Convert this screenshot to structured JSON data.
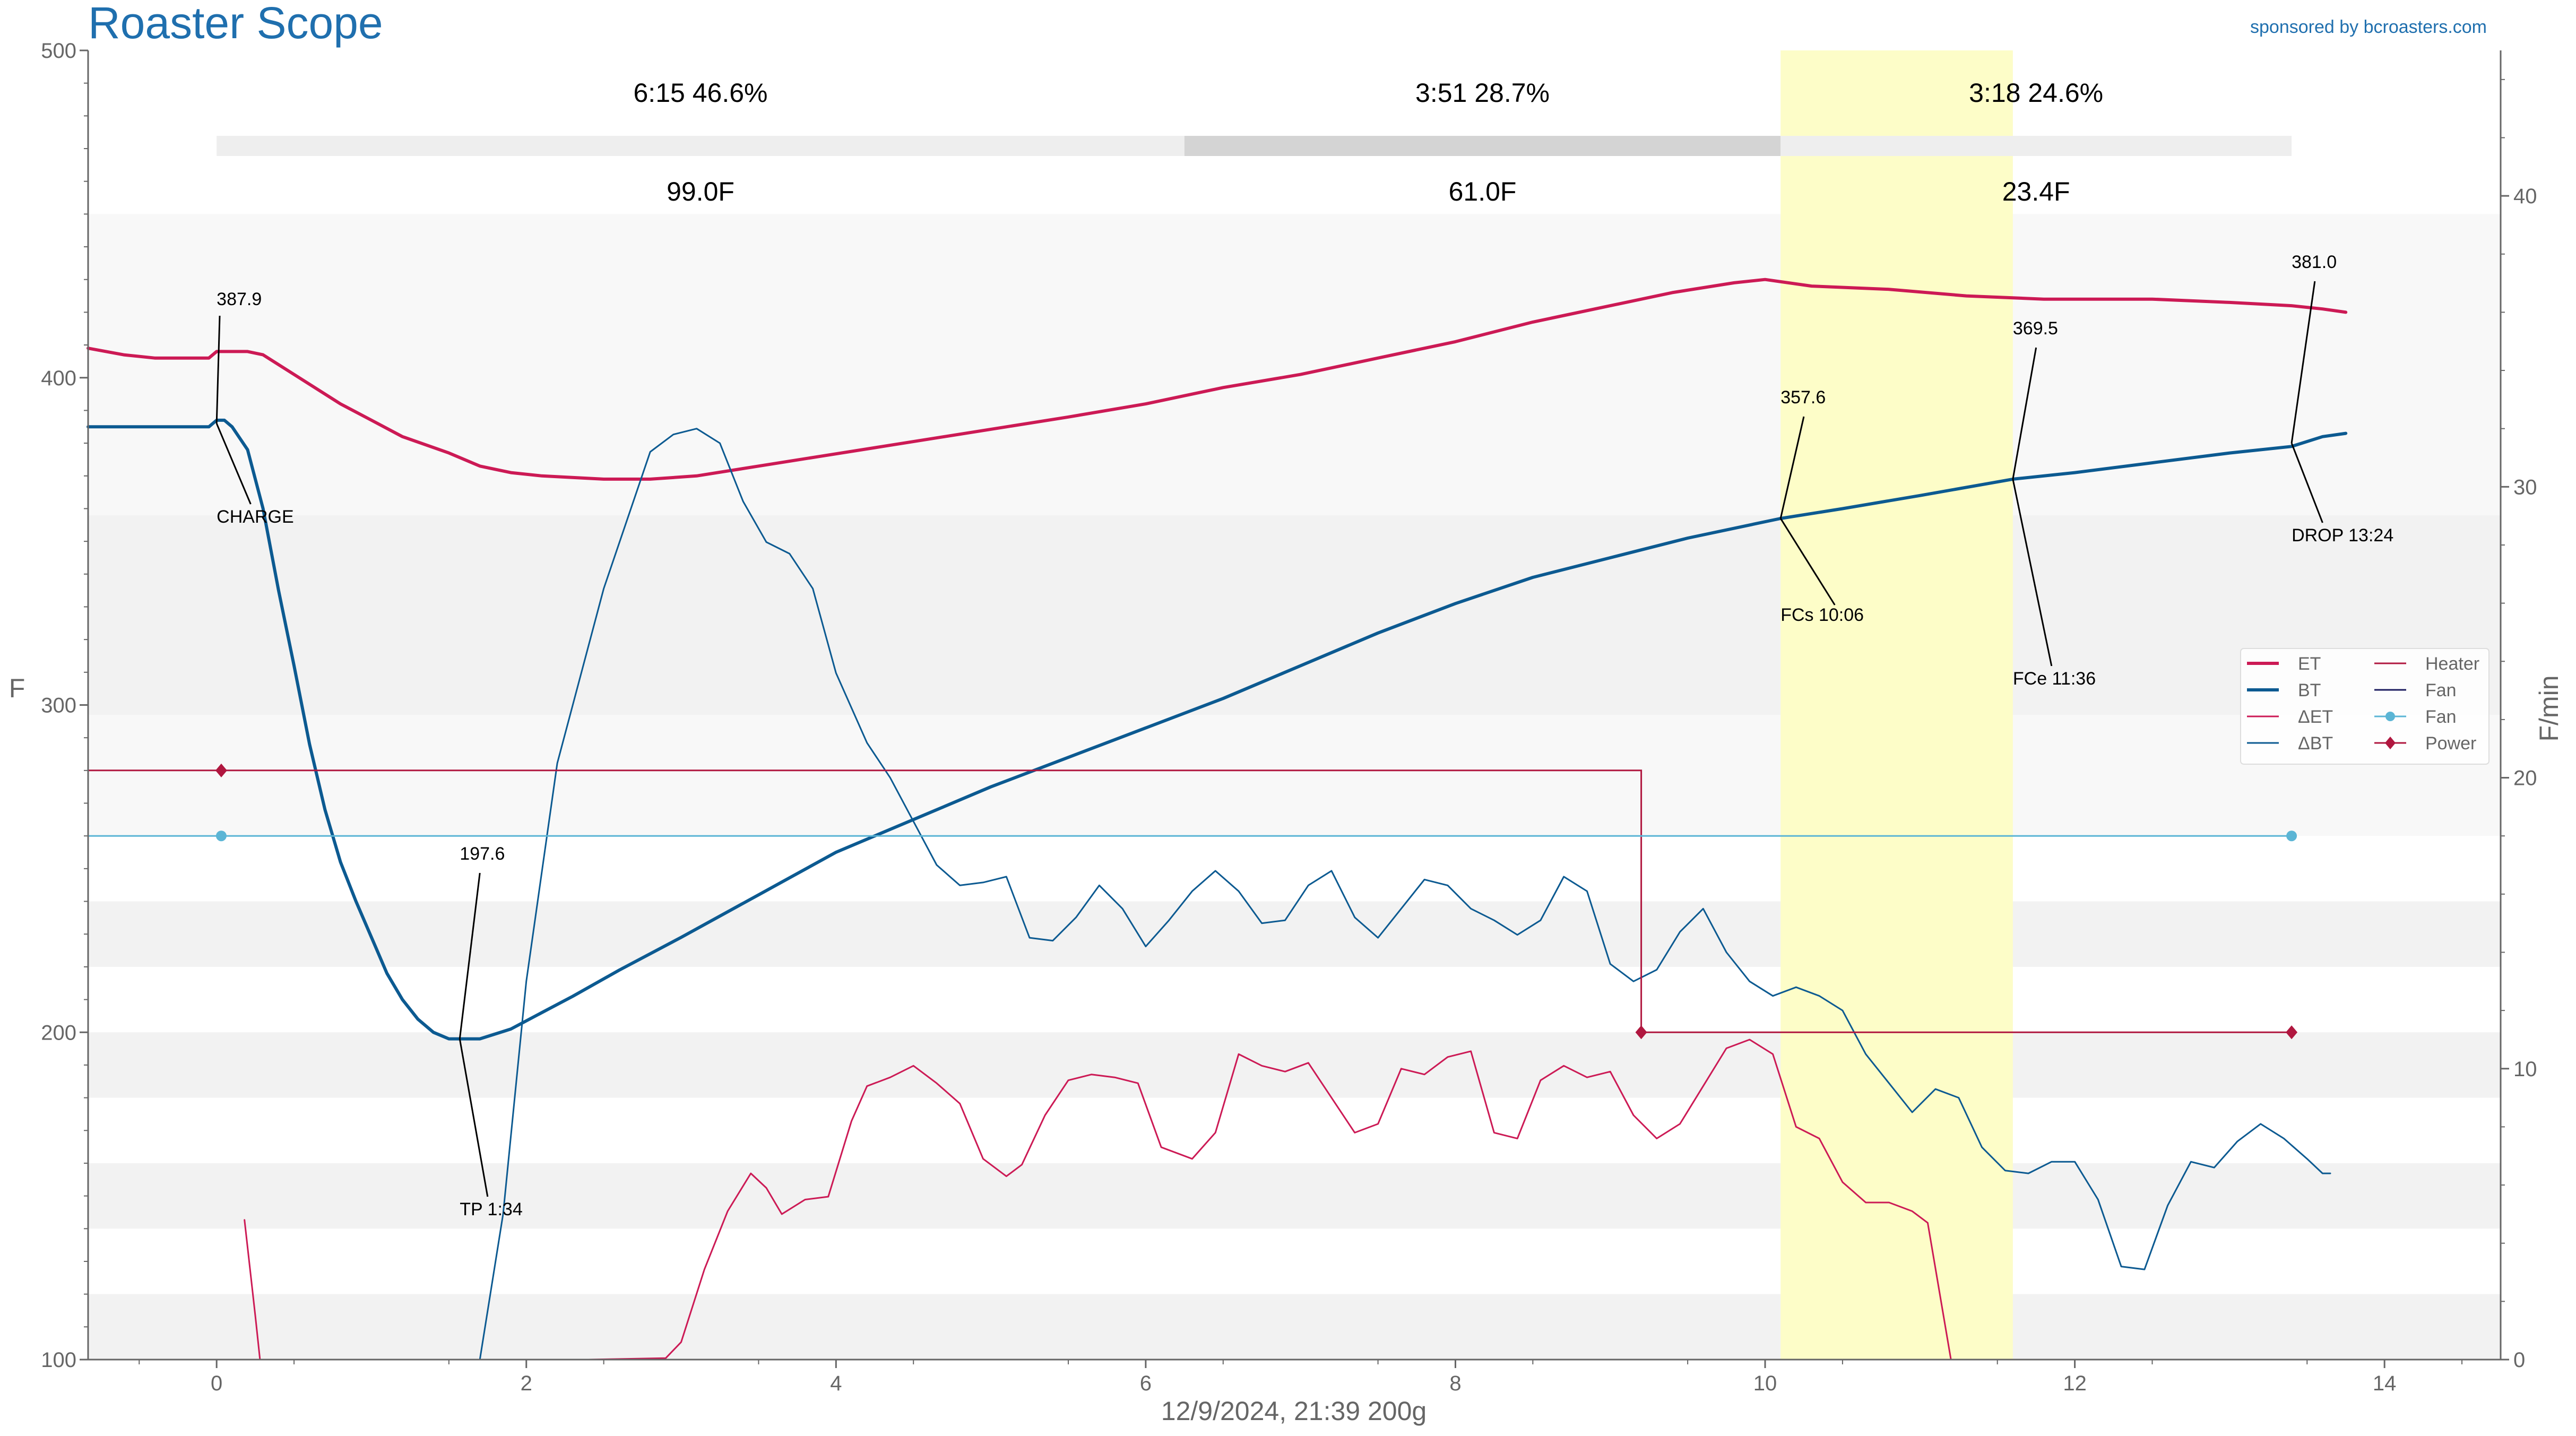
{
  "header": {
    "app_title": "Roaster Scope",
    "sponsor": "sponsored by bcroasters.com",
    "footer": "12/9/2024, 21:39   200g"
  },
  "colors": {
    "title": "#1f6fae",
    "sponsor": "#1f6fae",
    "et": "#cc1a55",
    "bt": "#0c5a91",
    "delta_et": "#cc1a55",
    "delta_bt": "#0c5a91",
    "heater": "#b0173f",
    "fan_setting": "#5bb5d5",
    "power": "#b0173f",
    "fc_band": "#fdfdc8",
    "band_light": "#f8f8f8",
    "band_mid": "#f2f2f2",
    "phase_bar_light": "#eeeeee",
    "phase_bar_dark": "#d4d4d4",
    "axis": "#666666"
  },
  "chart_data": {
    "type": "line",
    "xlim": [
      -0.83,
      14.75
    ],
    "ylim_left": [
      100,
      500
    ],
    "ylim_right": [
      0,
      45
    ],
    "ylabel_left": "F",
    "ylabel_right": "F/min",
    "x_ticks": [
      0,
      2,
      4,
      6,
      8,
      10,
      12,
      14
    ],
    "y_ticks_left": [
      100,
      200,
      300,
      400,
      500
    ],
    "y_ticks_right": [
      0,
      10,
      20,
      30,
      40
    ],
    "grid": false,
    "legend_position": "right",
    "legend": [
      {
        "label": "ET",
        "key": "et",
        "style": "line"
      },
      {
        "label": "Heater",
        "key": "heater",
        "style": "line"
      },
      {
        "label": "BT",
        "key": "bt",
        "style": "line"
      },
      {
        "label": "Fan",
        "key": "fan",
        "style": "line",
        "color": "#1a1a5e"
      },
      {
        "label": "ΔET",
        "key": "delta_et",
        "style": "line"
      },
      {
        "label": "Fan",
        "key": "fan_setting",
        "style": "dot"
      },
      {
        "label": "ΔBT",
        "key": "delta_bt",
        "style": "line"
      },
      {
        "label": "Power",
        "key": "power",
        "style": "diamond"
      }
    ],
    "phases": [
      {
        "start": 0,
        "end": 6.25,
        "duration_pct": "6:15  46.6%",
        "rise": "99.0F"
      },
      {
        "start": 6.25,
        "end": 10.1,
        "duration_pct": "3:51  28.7%",
        "rise": "61.0F"
      },
      {
        "start": 10.1,
        "end": 13.4,
        "duration_pct": "3:18  24.6%",
        "rise": "23.4F"
      }
    ],
    "fc_band": [
      10.1,
      11.6
    ],
    "bands": [
      {
        "y0": 450,
        "y1": 358,
        "shade": "light"
      },
      {
        "y0": 358,
        "y1": 297,
        "shade": "mid"
      },
      {
        "y0": 297,
        "y1": 260,
        "shade": "light"
      },
      {
        "y0": 240,
        "y1": 220,
        "shade": "mid"
      },
      {
        "y0": 200,
        "y1": 180,
        "shade": "mid"
      },
      {
        "y0": 160,
        "y1": 140,
        "shade": "mid"
      },
      {
        "y0": 120,
        "y1": 100,
        "shade": "mid"
      }
    ],
    "events": [
      {
        "label": "CHARGE",
        "value_label": "387.9",
        "x": 0.0,
        "y": 386
      },
      {
        "label": "TP 1:34",
        "value_label": "197.6",
        "x": 1.57,
        "y": 198
      },
      {
        "label": "FCs 10:06",
        "value_label": "357.6",
        "x": 10.1,
        "y": 357
      },
      {
        "label": "FCe 11:36",
        "value_label": "369.5",
        "x": 11.6,
        "y": 369
      },
      {
        "label": "DROP 13:24",
        "value_label": "381.0",
        "x": 13.4,
        "y": 380
      }
    ],
    "series": [
      {
        "name": "ET",
        "key": "et",
        "axis": "left",
        "width": 6,
        "points": [
          [
            -0.83,
            409
          ],
          [
            -0.6,
            407
          ],
          [
            -0.4,
            406
          ],
          [
            -0.2,
            406
          ],
          [
            -0.05,
            406
          ],
          [
            0,
            408
          ],
          [
            0.2,
            408
          ],
          [
            0.3,
            407
          ],
          [
            0.5,
            401
          ],
          [
            0.8,
            392
          ],
          [
            1,
            387
          ],
          [
            1.2,
            382
          ],
          [
            1.5,
            377
          ],
          [
            1.7,
            373
          ],
          [
            1.9,
            371
          ],
          [
            2.1,
            370
          ],
          [
            2.5,
            369
          ],
          [
            2.8,
            369
          ],
          [
            3.1,
            370
          ],
          [
            3.5,
            373
          ],
          [
            3.9,
            376
          ],
          [
            4.3,
            379
          ],
          [
            4.7,
            382
          ],
          [
            5.1,
            385
          ],
          [
            5.5,
            388
          ],
          [
            6,
            392
          ],
          [
            6.5,
            397
          ],
          [
            7,
            401
          ],
          [
            7.5,
            406
          ],
          [
            8,
            411
          ],
          [
            8.5,
            417
          ],
          [
            9,
            422
          ],
          [
            9.4,
            426
          ],
          [
            9.8,
            429
          ],
          [
            10,
            430
          ],
          [
            10.3,
            428
          ],
          [
            10.8,
            427
          ],
          [
            11.3,
            425
          ],
          [
            11.8,
            424
          ],
          [
            12.5,
            424
          ],
          [
            13,
            423
          ],
          [
            13.4,
            422
          ],
          [
            13.6,
            421
          ],
          [
            13.75,
            420
          ]
        ]
      },
      {
        "name": "BT",
        "key": "bt",
        "axis": "left",
        "width": 6,
        "points": [
          [
            -0.83,
            385
          ],
          [
            -0.2,
            385
          ],
          [
            -0.05,
            385
          ],
          [
            0,
            387
          ],
          [
            0.05,
            387
          ],
          [
            0.1,
            385
          ],
          [
            0.2,
            378
          ],
          [
            0.3,
            360
          ],
          [
            0.4,
            335
          ],
          [
            0.5,
            312
          ],
          [
            0.6,
            288
          ],
          [
            0.7,
            268
          ],
          [
            0.8,
            252
          ],
          [
            0.9,
            240
          ],
          [
            1,
            229
          ],
          [
            1.1,
            218
          ],
          [
            1.2,
            210
          ],
          [
            1.3,
            204
          ],
          [
            1.4,
            200
          ],
          [
            1.5,
            198
          ],
          [
            1.57,
            198
          ],
          [
            1.7,
            198
          ],
          [
            1.9,
            201
          ],
          [
            2.1,
            206
          ],
          [
            2.3,
            211
          ],
          [
            2.6,
            219
          ],
          [
            3,
            229
          ],
          [
            3.5,
            242
          ],
          [
            4,
            255
          ],
          [
            4.5,
            265
          ],
          [
            5,
            275
          ],
          [
            5.5,
            284
          ],
          [
            6,
            293
          ],
          [
            6.5,
            302
          ],
          [
            7,
            312
          ],
          [
            7.5,
            322
          ],
          [
            8,
            331
          ],
          [
            8.5,
            339
          ],
          [
            9,
            345
          ],
          [
            9.5,
            351
          ],
          [
            10.1,
            357
          ],
          [
            10.5,
            360
          ],
          [
            11,
            364
          ],
          [
            11.6,
            369
          ],
          [
            12,
            371
          ],
          [
            12.5,
            374
          ],
          [
            13,
            377
          ],
          [
            13.4,
            379
          ],
          [
            13.6,
            382
          ],
          [
            13.75,
            383
          ]
        ]
      },
      {
        "name": "ΔET",
        "key": "delta_et",
        "axis": "right",
        "width": 3,
        "points": [
          [
            0.18,
            4.8
          ],
          [
            0.25,
            1.5
          ],
          [
            0.28,
            0
          ]
        ],
        "extra": [
          [
            2.4,
            0
          ],
          [
            2.9,
            0.05
          ],
          [
            3,
            0.6
          ],
          [
            3.15,
            3.1
          ],
          [
            3.3,
            5.1
          ],
          [
            3.45,
            6.4
          ],
          [
            3.55,
            5.9
          ],
          [
            3.65,
            5.0
          ],
          [
            3.8,
            5.5
          ],
          [
            3.95,
            5.6
          ],
          [
            4.1,
            8.2
          ],
          [
            4.2,
            9.4
          ],
          [
            4.35,
            9.7
          ],
          [
            4.5,
            10.1
          ],
          [
            4.65,
            9.5
          ],
          [
            4.8,
            8.8
          ],
          [
            4.95,
            6.9
          ],
          [
            5.1,
            6.3
          ],
          [
            5.2,
            6.7
          ],
          [
            5.35,
            8.4
          ],
          [
            5.5,
            9.6
          ],
          [
            5.65,
            9.8
          ],
          [
            5.8,
            9.7
          ],
          [
            5.95,
            9.5
          ],
          [
            6.1,
            7.3
          ],
          [
            6.3,
            6.9
          ],
          [
            6.45,
            7.8
          ],
          [
            6.6,
            10.5
          ],
          [
            6.75,
            10.1
          ],
          [
            6.9,
            9.9
          ],
          [
            7.05,
            10.2
          ],
          [
            7.2,
            9.0
          ],
          [
            7.35,
            7.8
          ],
          [
            7.5,
            8.1
          ],
          [
            7.65,
            10.0
          ],
          [
            7.8,
            9.8
          ],
          [
            7.95,
            10.4
          ],
          [
            8.1,
            10.6
          ],
          [
            8.25,
            7.8
          ],
          [
            8.4,
            7.6
          ],
          [
            8.55,
            9.6
          ],
          [
            8.7,
            10.1
          ],
          [
            8.85,
            9.7
          ],
          [
            9,
            9.9
          ],
          [
            9.15,
            8.4
          ],
          [
            9.3,
            7.6
          ],
          [
            9.45,
            8.1
          ],
          [
            9.6,
            9.4
          ],
          [
            9.75,
            10.7
          ],
          [
            9.9,
            11.0
          ],
          [
            10.05,
            10.5
          ],
          [
            10.2,
            8.0
          ],
          [
            10.35,
            7.6
          ],
          [
            10.5,
            6.1
          ],
          [
            10.65,
            5.4
          ],
          [
            10.8,
            5.4
          ],
          [
            10.95,
            5.1
          ],
          [
            11.05,
            4.7
          ],
          [
            11.2,
            0
          ]
        ]
      },
      {
        "name": "ΔBT",
        "key": "delta_bt",
        "axis": "right",
        "width": 3,
        "points": [
          [
            1.7,
            0
          ],
          [
            1.85,
            5
          ],
          [
            2,
            13
          ],
          [
            2.2,
            20.5
          ],
          [
            2.5,
            26.5
          ],
          [
            2.8,
            31.2
          ],
          [
            2.95,
            31.8
          ],
          [
            3.1,
            32.0
          ],
          [
            3.25,
            31.5
          ],
          [
            3.4,
            29.5
          ],
          [
            3.55,
            28.1
          ],
          [
            3.7,
            27.7
          ],
          [
            3.85,
            26.5
          ],
          [
            4,
            23.6
          ],
          [
            4.2,
            21.2
          ],
          [
            4.35,
            20.0
          ],
          [
            4.5,
            18.5
          ],
          [
            4.65,
            17.0
          ],
          [
            4.8,
            16.3
          ],
          [
            4.95,
            16.4
          ],
          [
            5.1,
            16.6
          ],
          [
            5.25,
            14.5
          ],
          [
            5.4,
            14.4
          ],
          [
            5.55,
            15.2
          ],
          [
            5.7,
            16.3
          ],
          [
            5.85,
            15.5
          ],
          [
            6,
            14.2
          ],
          [
            6.15,
            15.1
          ],
          [
            6.3,
            16.1
          ],
          [
            6.45,
            16.8
          ],
          [
            6.6,
            16.1
          ],
          [
            6.75,
            15.0
          ],
          [
            6.9,
            15.1
          ],
          [
            7.05,
            16.3
          ],
          [
            7.2,
            16.8
          ],
          [
            7.35,
            15.2
          ],
          [
            7.5,
            14.5
          ],
          [
            7.65,
            15.5
          ],
          [
            7.8,
            16.5
          ],
          [
            7.95,
            16.3
          ],
          [
            8.1,
            15.5
          ],
          [
            8.25,
            15.1
          ],
          [
            8.4,
            14.6
          ],
          [
            8.55,
            15.1
          ],
          [
            8.7,
            16.6
          ],
          [
            8.85,
            16.1
          ],
          [
            9,
            13.6
          ],
          [
            9.15,
            13.0
          ],
          [
            9.3,
            13.4
          ],
          [
            9.45,
            14.7
          ],
          [
            9.6,
            15.5
          ],
          [
            9.75,
            14.0
          ],
          [
            9.9,
            13.0
          ],
          [
            10.05,
            12.5
          ],
          [
            10.2,
            12.8
          ],
          [
            10.35,
            12.5
          ],
          [
            10.5,
            12.0
          ],
          [
            10.65,
            10.5
          ],
          [
            10.8,
            9.5
          ],
          [
            10.95,
            8.5
          ],
          [
            11.1,
            9.3
          ],
          [
            11.25,
            9.0
          ],
          [
            11.4,
            7.3
          ],
          [
            11.55,
            6.5
          ],
          [
            11.7,
            6.4
          ],
          [
            11.85,
            6.8
          ],
          [
            12,
            6.8
          ],
          [
            12.15,
            5.5
          ],
          [
            12.3,
            3.2
          ],
          [
            12.45,
            3.1
          ],
          [
            12.6,
            5.3
          ],
          [
            12.75,
            6.8
          ],
          [
            12.9,
            6.6
          ],
          [
            13.05,
            7.5
          ],
          [
            13.2,
            8.1
          ],
          [
            13.35,
            7.6
          ],
          [
            13.5,
            6.9
          ],
          [
            13.6,
            6.4
          ],
          [
            13.65,
            6.4
          ]
        ]
      },
      {
        "name": "Heater",
        "key": "heater",
        "axis": "left",
        "width": 3,
        "points": [
          [
            -0.83,
            280
          ],
          [
            9.2,
            280
          ],
          [
            9.2,
            200
          ],
          [
            13.4,
            200
          ]
        ]
      },
      {
        "name": "Fan",
        "key": "fan_setting",
        "axis": "left",
        "width": 3,
        "points": [
          [
            -0.83,
            260
          ],
          [
            13.4,
            260
          ]
        ]
      }
    ],
    "markers": [
      {
        "series": "Power",
        "shape": "diamond",
        "color": "#b0173f",
        "points": [
          [
            0.03,
            280
          ],
          [
            9.2,
            200
          ],
          [
            13.4,
            200
          ]
        ]
      },
      {
        "series": "Fan",
        "shape": "circle",
        "color": "#5bb5d5",
        "points": [
          [
            0.03,
            260
          ],
          [
            13.4,
            260
          ]
        ]
      }
    ]
  }
}
